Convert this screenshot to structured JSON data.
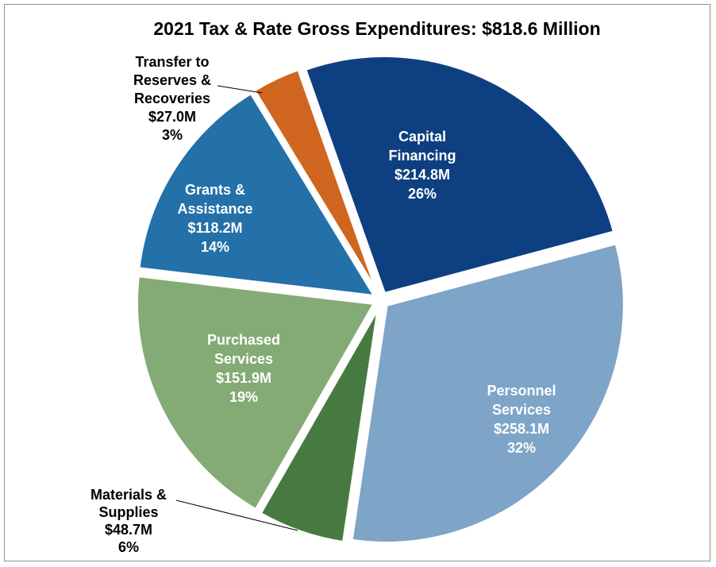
{
  "chart_data": {
    "type": "pie",
    "title": "2021 Tax & Rate Gross Expenditures: $818.6 Million",
    "total_label": "$818.6 Million",
    "slices": [
      {
        "id": "capital-financing",
        "label_lines": [
          "Capital",
          "Financing"
        ],
        "amount": "$214.8M",
        "value": 214.8,
        "percent": "26%",
        "color": "#0e3f80",
        "label_color": "#ffffff"
      },
      {
        "id": "personnel-services",
        "label_lines": [
          "Personnel",
          "Services"
        ],
        "amount": "$258.1M",
        "value": 258.1,
        "percent": "32%",
        "color": "#7ea4c8",
        "label_color": "#ffffff"
      },
      {
        "id": "materials-supplies",
        "label_lines": [
          "Materials &",
          "Supplies"
        ],
        "amount": "$48.7M",
        "value": 48.7,
        "percent": "6%",
        "color": "#477a41",
        "label_color": "#000000"
      },
      {
        "id": "purchased-services",
        "label_lines": [
          "Purchased",
          "Services"
        ],
        "amount": "$151.9M",
        "value": 151.9,
        "percent": "19%",
        "color": "#84ab75",
        "label_color": "#ffffff"
      },
      {
        "id": "grants-assistance",
        "label_lines": [
          "Grants &",
          "Assistance"
        ],
        "amount": "$118.2M",
        "value": 118.2,
        "percent": "14%",
        "color": "#2470a8",
        "label_color": "#ffffff"
      },
      {
        "id": "transfer-reserves",
        "label_lines": [
          "Transfer to",
          "Reserves &",
          "Recoveries"
        ],
        "amount": "$27.0M",
        "value": 27.0,
        "percent": "3%",
        "color": "#d06520",
        "label_color": "#000000"
      }
    ]
  }
}
